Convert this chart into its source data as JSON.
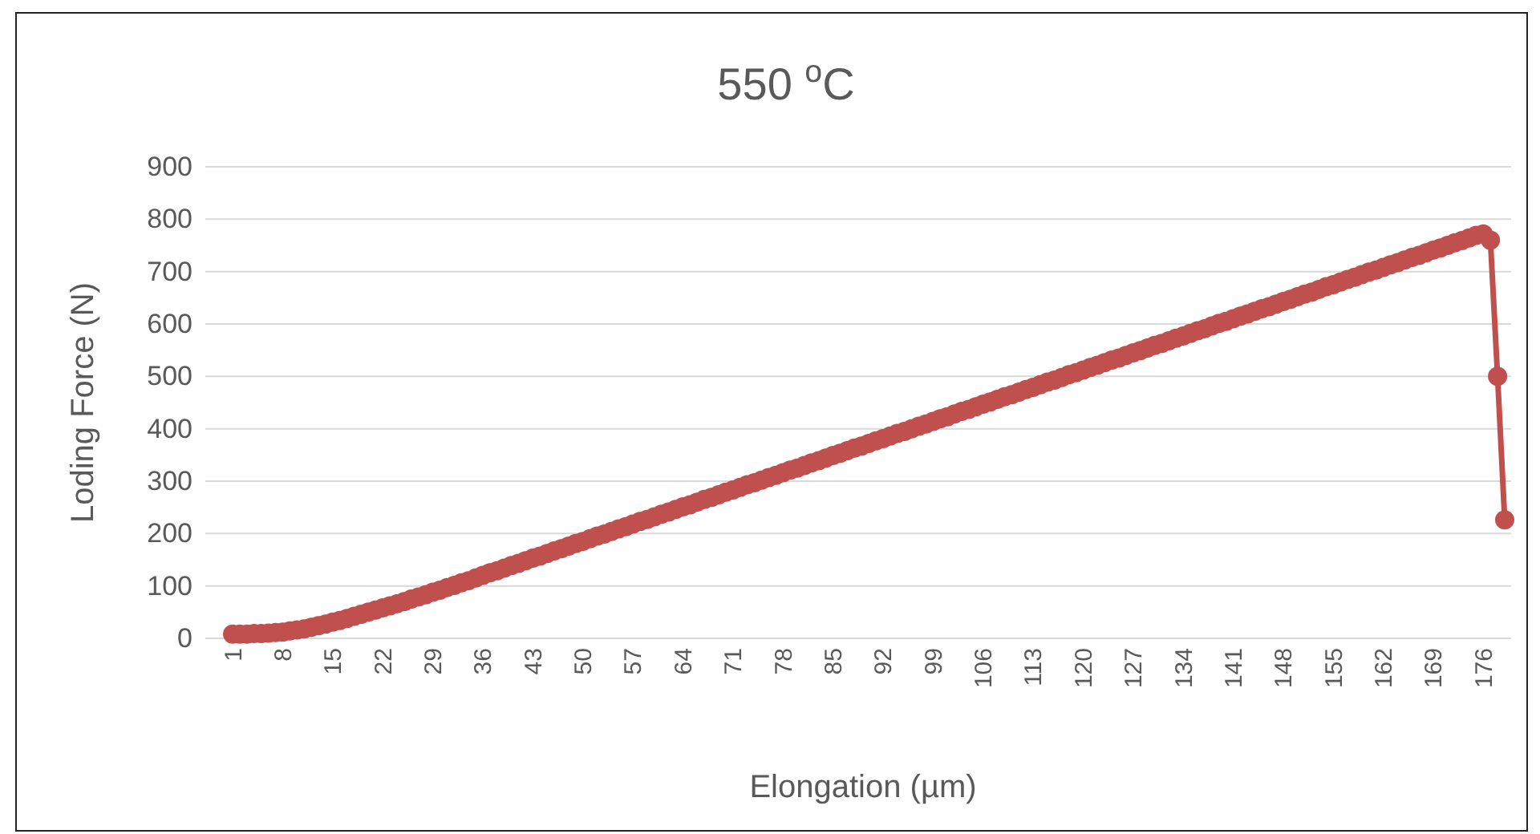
{
  "chart_data": {
    "type": "line",
    "title": "550 $^{o}$C",
    "xlabel": "Elongation (µm)",
    "ylabel": "Loding Force (N)",
    "categories": [
      "1",
      null,
      null,
      null,
      null,
      null,
      null,
      "8",
      null,
      null,
      null,
      null,
      null,
      null,
      "15",
      null,
      null,
      null,
      null,
      null,
      null,
      "22",
      null,
      null,
      null,
      null,
      null,
      null,
      "29",
      null,
      null,
      null,
      null,
      null,
      null,
      "36",
      null,
      null,
      null,
      null,
      null,
      null,
      "43",
      null,
      null,
      null,
      null,
      null,
      null,
      "50",
      null,
      null,
      null,
      null,
      null,
      null,
      "57",
      null,
      null,
      null,
      null,
      null,
      null,
      "64",
      null,
      null,
      null,
      null,
      null,
      null,
      "71",
      null,
      null,
      null,
      null,
      null,
      null,
      "78",
      null,
      null,
      null,
      null,
      null,
      null,
      "85",
      null,
      null,
      null,
      null,
      null,
      null,
      "92",
      null,
      null,
      null,
      null,
      null,
      null,
      "99",
      null,
      null,
      null,
      null,
      null,
      null,
      "106",
      null,
      null,
      null,
      null,
      null,
      null,
      "113",
      null,
      null,
      null,
      null,
      null,
      null,
      "120",
      null,
      null,
      null,
      null,
      null,
      null,
      "127",
      null,
      null,
      null,
      null,
      null,
      null,
      "134",
      null,
      null,
      null,
      null,
      null,
      null,
      "141",
      null,
      null,
      null,
      null,
      null,
      null,
      "148",
      null,
      null,
      null,
      null,
      null,
      null,
      "155",
      null,
      null,
      null,
      null,
      null,
      null,
      "162",
      null,
      null,
      null,
      null,
      null,
      null,
      "169",
      null,
      null,
      null,
      null,
      null,
      null,
      "176",
      null,
      null,
      null
    ],
    "series": [
      {
        "color": "#c0504d",
        "values": [
          8,
          8,
          8,
          9,
          9,
          10,
          11,
          12,
          14,
          16,
          18,
          21,
          24,
          27,
          31,
          34,
          38,
          42,
          46,
          50,
          54,
          58,
          62,
          66,
          70,
          75,
          79,
          83,
          88,
          92,
          97,
          101,
          106,
          110,
          115,
          120,
          125,
          129,
          134,
          139,
          143,
          148,
          153,
          157,
          162,
          167,
          171,
          176,
          181,
          185,
          190,
          195,
          199,
          204,
          209,
          213,
          218,
          223,
          227,
          232,
          237,
          241,
          246,
          251,
          255,
          260,
          265,
          269,
          274,
          279,
          283,
          288,
          293,
          297,
          302,
          307,
          311,
          316,
          321,
          325,
          330,
          335,
          339,
          344,
          349,
          353,
          358,
          363,
          367,
          372,
          377,
          381,
          386,
          391,
          395,
          400,
          405,
          409,
          414,
          419,
          423,
          428,
          433,
          437,
          442,
          447,
          451,
          456,
          461,
          465,
          470,
          475,
          479,
          484,
          489,
          493,
          498,
          503,
          507,
          512,
          517,
          521,
          526,
          531,
          535,
          540,
          545,
          549,
          554,
          559,
          563,
          568,
          573,
          577,
          582,
          587,
          591,
          596,
          601,
          605,
          610,
          615,
          619,
          624,
          629,
          633,
          638,
          643,
          647,
          652,
          657,
          661,
          666,
          671,
          675,
          680,
          685,
          689,
          694,
          699,
          703,
          708,
          713,
          717,
          722,
          727,
          731,
          736,
          741,
          745,
          750,
          755,
          759,
          764,
          769,
          772,
          760,
          500,
          226
        ]
      }
    ],
    "ylim": [
      0,
      900
    ],
    "yticks": [
      0,
      100,
      200,
      300,
      400,
      500,
      600,
      700,
      800,
      900
    ],
    "grid": "y",
    "marker": "circle",
    "line_style": "solid"
  }
}
